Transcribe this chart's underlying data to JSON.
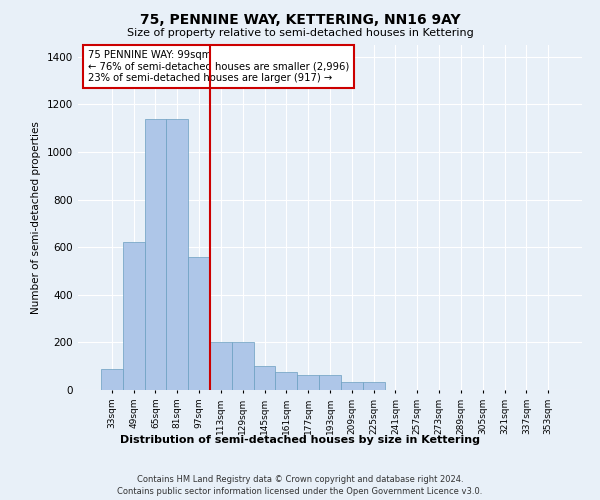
{
  "title": "75, PENNINE WAY, KETTERING, NN16 9AY",
  "subtitle": "Size of property relative to semi-detached houses in Kettering",
  "xlabel": "Distribution of semi-detached houses by size in Kettering",
  "ylabel": "Number of semi-detached properties",
  "annotation_line1": "75 PENNINE WAY: 99sqm",
  "annotation_line2": "← 76% of semi-detached houses are smaller (2,996)",
  "annotation_line3": "23% of semi-detached houses are larger (917) →",
  "footer_line1": "Contains HM Land Registry data © Crown copyright and database right 2024.",
  "footer_line2": "Contains public sector information licensed under the Open Government Licence v3.0.",
  "categories": [
    "33sqm",
    "49sqm",
    "65sqm",
    "81sqm",
    "97sqm",
    "113sqm",
    "129sqm",
    "145sqm",
    "161sqm",
    "177sqm",
    "193sqm",
    "209sqm",
    "225sqm",
    "241sqm",
    "257sqm",
    "273sqm",
    "289sqm",
    "305sqm",
    "321sqm",
    "337sqm",
    "353sqm"
  ],
  "values": [
    90,
    620,
    1140,
    1140,
    560,
    200,
    200,
    100,
    75,
    65,
    65,
    35,
    35,
    0,
    0,
    0,
    0,
    0,
    0,
    0,
    0
  ],
  "bar_color": "#aec6e8",
  "bar_edge_color": "#6a9fc0",
  "vline_color": "#cc0000",
  "vline_x": 4.5,
  "annotation_box_color": "#cc0000",
  "background_color": "#e8f0f8",
  "ylim": [
    0,
    1450
  ],
  "yticks": [
    0,
    200,
    400,
    600,
    800,
    1000,
    1200,
    1400
  ]
}
